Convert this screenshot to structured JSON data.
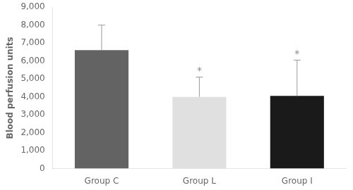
{
  "chart_data": {
    "type": "bar",
    "categories": [
      "Group C",
      "Group L",
      "Group I"
    ],
    "values": [
      6600,
      4000,
      4050
    ],
    "errors_upper": [
      1400,
      1100,
      2000
    ],
    "significance_marks": [
      null,
      "*",
      "*"
    ],
    "colors": [
      "#636363",
      "#e0e0e0",
      "#1a1a1a"
    ],
    "ylabel": "Blood perfusion units",
    "ylim": [
      0,
      9000
    ],
    "yticks": [
      0,
      {
        "value": 1000,
        "label": "1,000"
      },
      {
        "value": 2000,
        "label": "2,000"
      },
      {
        "value": 3000,
        "label": "3,000"
      },
      {
        "value": 4000,
        "label": "4,000"
      },
      {
        "value": 5000,
        "label": "5,000"
      },
      {
        "value": 6000,
        "label": "6,000"
      },
      {
        "value": 7000,
        "label": "7,000"
      },
      {
        "value": 8000,
        "label": "8,000"
      },
      {
        "value": 9000,
        "label": "9,000"
      }
    ],
    "grid": false
  }
}
